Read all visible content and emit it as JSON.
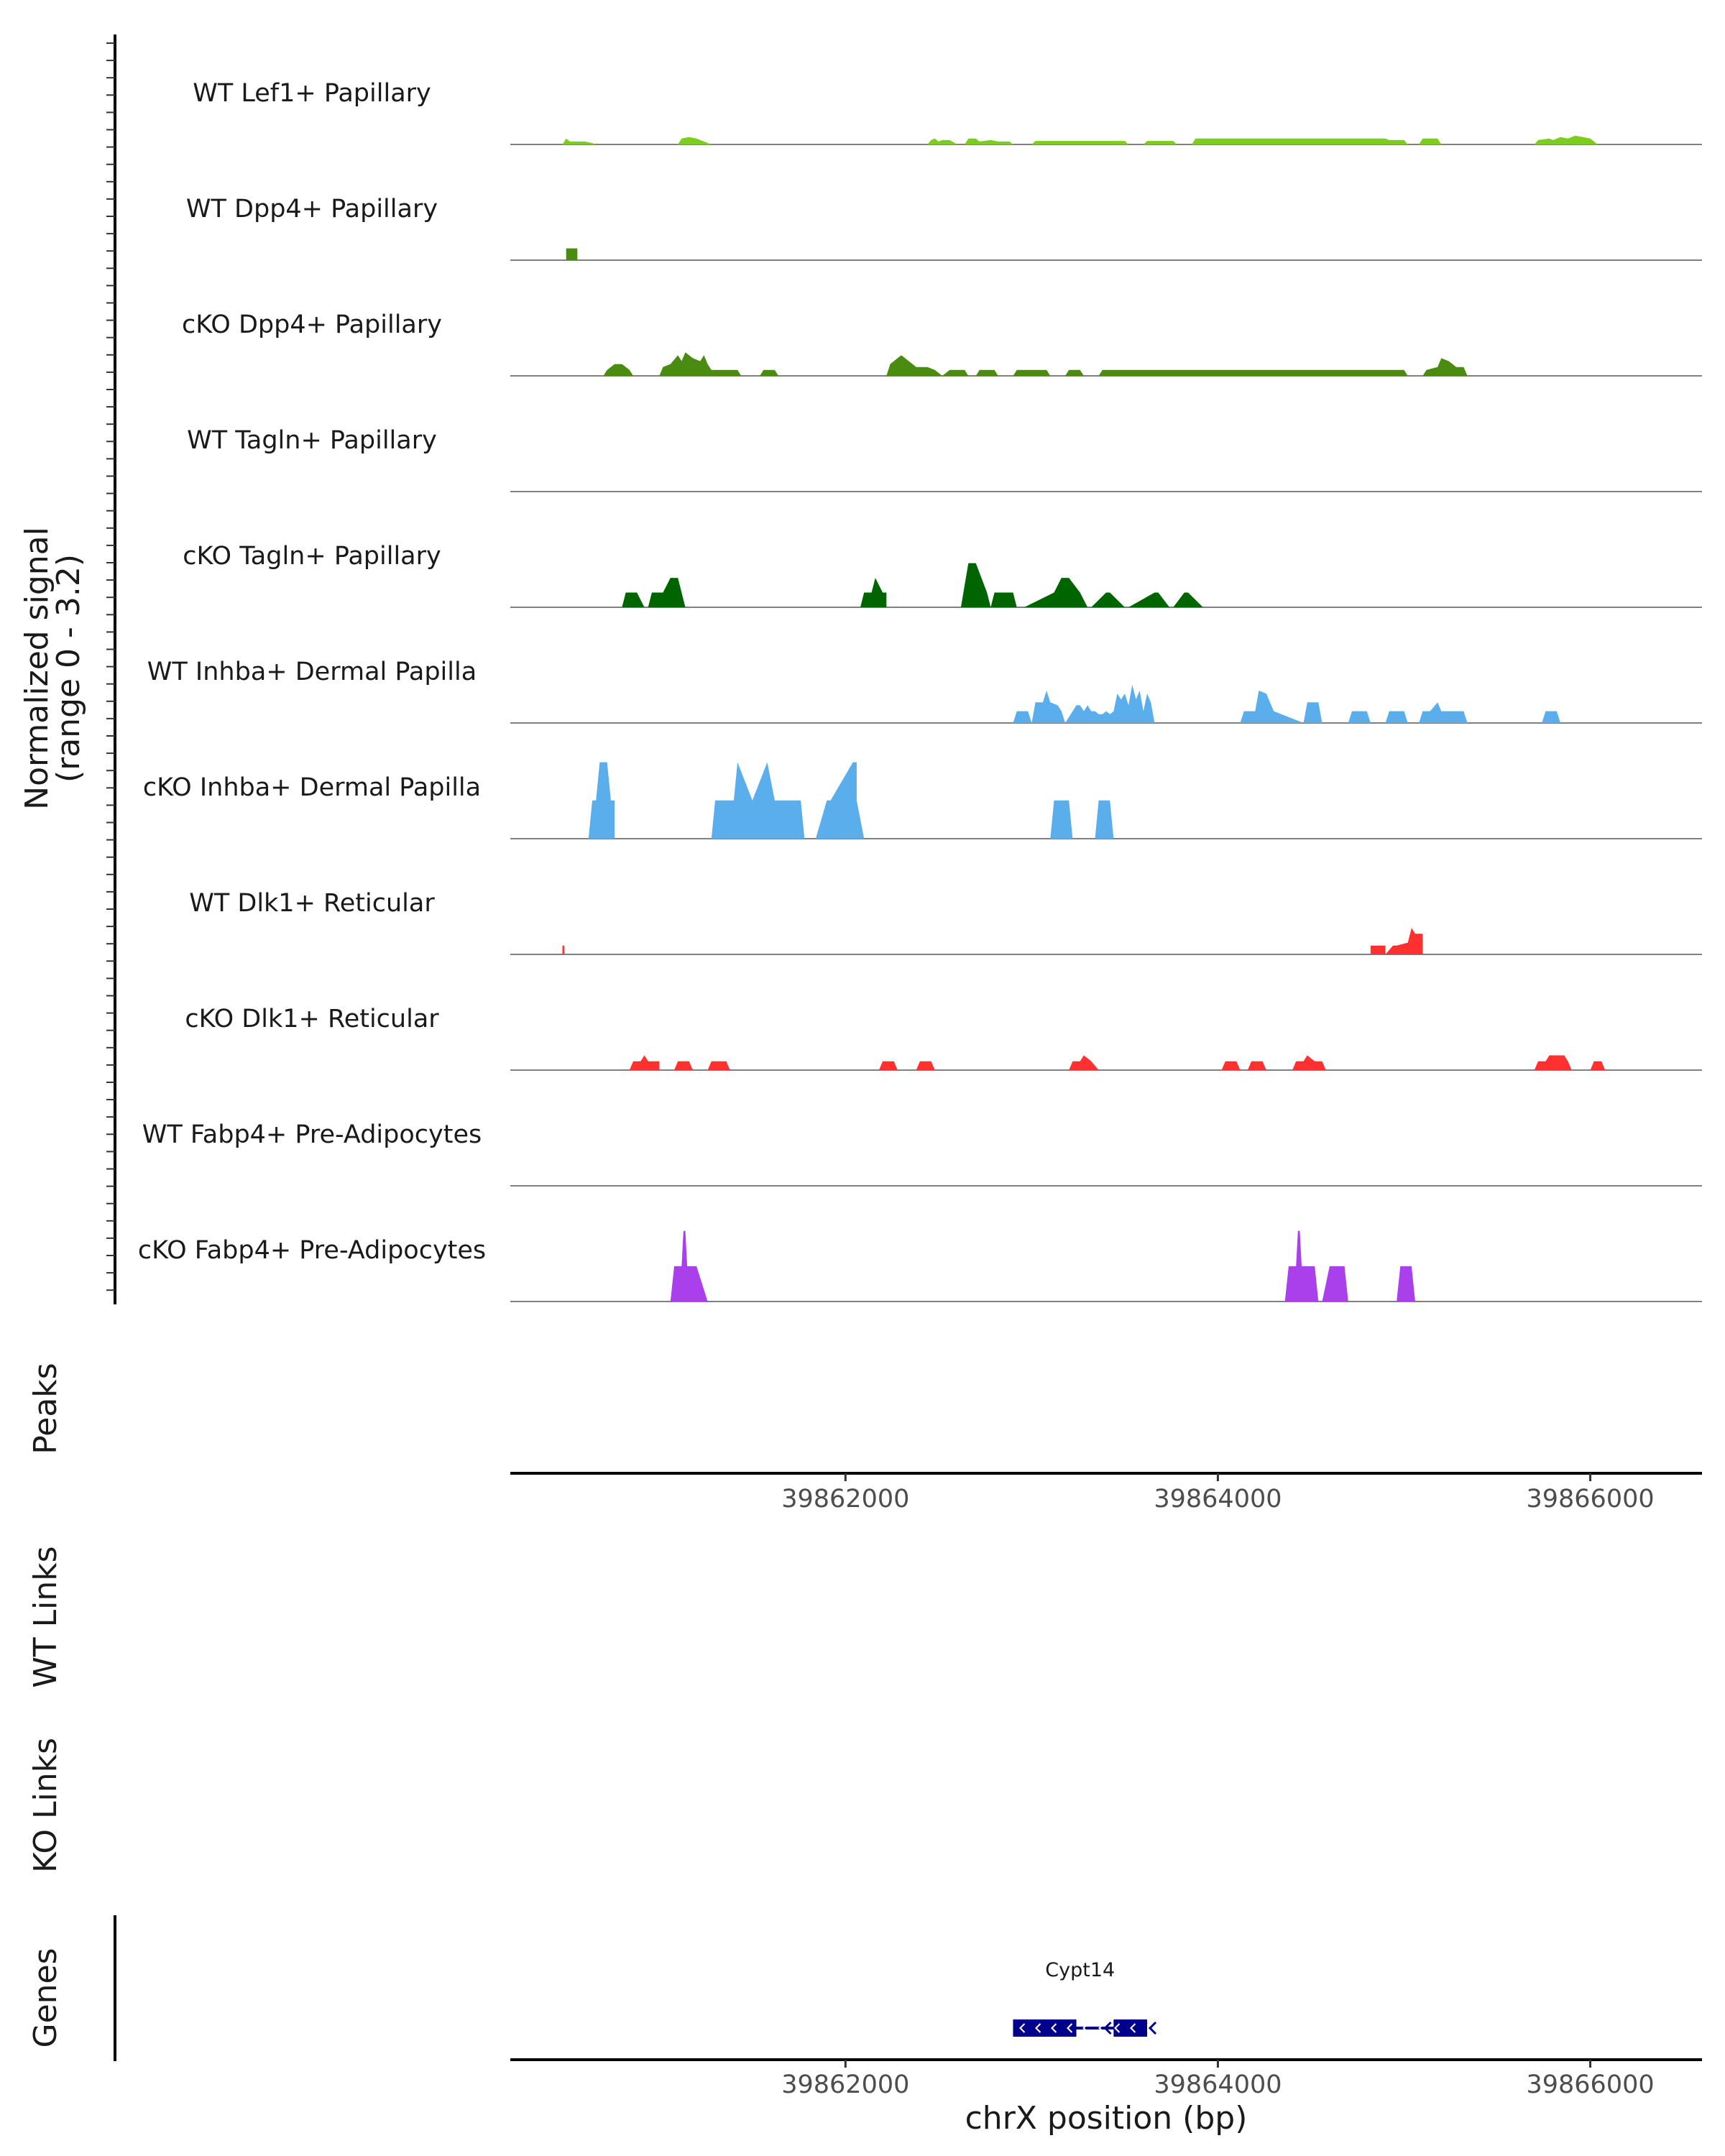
{
  "chart_data": {
    "type": "area",
    "description_axis": {
      "ylabel_line1": "Normalized signal",
      "ylabel_line2": "(range 0 - 3.2)",
      "ylim": [
        0,
        3.2
      ]
    },
    "xlabel": "chrX position (bp)",
    "xlim": [
      39860200,
      39866600
    ],
    "x_ticks": [
      39862000,
      39864000,
      39866000
    ],
    "x_tick_labels": [
      "39862000",
      "39864000",
      "39866000"
    ],
    "panel_labels": {
      "peaks": "Peaks",
      "wt_links": "WT Links",
      "ko_links": "KO Links",
      "genes": "Genes"
    },
    "series": [
      {
        "name": "WT Lef1+ Papillary",
        "color": "#7CCD1F",
        "x": [
          39860480,
          39860500,
          39860520,
          39860560,
          39860600,
          39860640,
          39860660,
          39861100,
          39861120,
          39861160,
          39861200,
          39861240,
          39861280,
          39862440,
          39862460,
          39862480,
          39862500,
          39862520,
          39862560,
          39862600,
          39862640,
          39862660,
          39862700,
          39862720,
          39862780,
          39862820,
          39862880,
          39862900,
          39863000,
          39863020,
          39863500,
          39863520,
          39863600,
          39863620,
          39863760,
          39863780,
          39863860,
          39863880,
          39864900,
          39864920,
          39865000,
          39865020,
          39865080,
          39865100,
          39865180,
          39865200,
          39865700,
          39865720,
          39865780,
          39865800,
          39865840,
          39865880,
          39865920,
          39865960,
          39866000,
          39866040
        ],
        "y": [
          0,
          0.2,
          0.1,
          0.1,
          0.1,
          0.05,
          0,
          0,
          0.2,
          0.25,
          0.2,
          0.1,
          0,
          0,
          0.15,
          0.2,
          0.1,
          0.15,
          0.15,
          0,
          0,
          0.2,
          0.2,
          0.1,
          0.15,
          0.1,
          0.1,
          0,
          0,
          0.12,
          0.12,
          0,
          0,
          0.12,
          0.12,
          0,
          0,
          0.2,
          0.2,
          0.15,
          0.15,
          0,
          0,
          0.2,
          0.2,
          0,
          0,
          0.15,
          0.2,
          0.15,
          0.25,
          0.2,
          0.3,
          0.25,
          0.2,
          0
        ]
      },
      {
        "name": "WT Dpp4+ Papillary",
        "color": "#4A8B11",
        "x": [
          39860500,
          39860500,
          39860560,
          39860560
        ],
        "y": [
          0,
          0.4,
          0.4,
          0
        ]
      },
      {
        "name": "cKO Dpp4+ Papillary",
        "color": "#4A8B11",
        "x": [
          39860700,
          39860720,
          39860760,
          39860800,
          39860840,
          39860860,
          39861000,
          39861020,
          39861060,
          39861100,
          39861120,
          39861140,
          39861180,
          39861220,
          39861240,
          39861260,
          39861280,
          39861420,
          39861440,
          39861540,
          39861560,
          39861620,
          39861640,
          39862220,
          39862240,
          39862260,
          39862300,
          39862320,
          39862340,
          39862380,
          39862440,
          39862480,
          39862520,
          39862560,
          39862640,
          39862660,
          39862700,
          39862720,
          39862800,
          39862820,
          39862900,
          39862920,
          39863080,
          39863100,
          39863180,
          39863200,
          39863260,
          39863280,
          39863360,
          39863380,
          39865000,
          39865020,
          39865100,
          39865120,
          39865180,
          39865200,
          39865240,
          39865280,
          39865320,
          39865340
        ],
        "y": [
          0,
          0.2,
          0.4,
          0.4,
          0.2,
          0,
          0,
          0.3,
          0.4,
          0.7,
          0.5,
          0.8,
          0.6,
          0.5,
          0.7,
          0.4,
          0.2,
          0.2,
          0,
          0,
          0.2,
          0.2,
          0,
          0,
          0.4,
          0.5,
          0.7,
          0.6,
          0.5,
          0.3,
          0.3,
          0.2,
          0,
          0.2,
          0.2,
          0,
          0,
          0.2,
          0.2,
          0,
          0,
          0.2,
          0.2,
          0,
          0,
          0.2,
          0.2,
          0,
          0,
          0.2,
          0.2,
          0,
          0,
          0.2,
          0.3,
          0.6,
          0.5,
          0.3,
          0.3,
          0
        ]
      },
      {
        "name": "WT Tagln+ Papillary",
        "color": "#006400",
        "x": [
          39860200,
          39866600
        ],
        "y": [
          0,
          0
        ]
      },
      {
        "name": "cKO Tagln+ Papillary",
        "color": "#006400",
        "x": [
          39860800,
          39860820,
          39860880,
          39860920,
          39860940,
          39860960,
          39861020,
          39861060,
          39861100,
          39861140,
          39862080,
          39862100,
          39862140,
          39862160,
          39862200,
          39862220,
          39862220,
          39862620,
          39862660,
          39862700,
          39862760,
          39862780,
          39862800,
          39862900,
          39862920,
          39862960,
          39863120,
          39863160,
          39863200,
          39863260,
          39863300,
          39863320,
          39863400,
          39863420,
          39863500,
          39863520,
          39863660,
          39863680,
          39863740,
          39863760,
          39863820,
          39863840,
          39863920,
          39863940
        ],
        "y": [
          0,
          0.5,
          0.5,
          0,
          0,
          0.5,
          0.5,
          1.0,
          1.0,
          0,
          0,
          0.5,
          0.5,
          1.0,
          0.5,
          0.5,
          0,
          0,
          1.5,
          1.5,
          0.5,
          0,
          0.5,
          0.5,
          0,
          0,
          0.5,
          1.0,
          1.0,
          0.5,
          0,
          0,
          0.5,
          0.5,
          0,
          0,
          0.5,
          0.5,
          0,
          0,
          0.5,
          0.5,
          0,
          0
        ]
      },
      {
        "name": "WT Inhba+ Dermal Papilla",
        "color": "#5BAEEC",
        "x": [
          39862900,
          39862920,
          39862980,
          39863000,
          39863020,
          39863060,
          39863080,
          39863100,
          39863140,
          39863160,
          39863180,
          39863220,
          39863240,
          39863260,
          39863280,
          39863300,
          39863320,
          39863340,
          39863360,
          39863380,
          39863400,
          39863420,
          39863440,
          39863460,
          39863480,
          39863500,
          39863520,
          39863540,
          39863560,
          39863580,
          39863600,
          39863620,
          39863640,
          39863660,
          39864120,
          39864140,
          39864200,
          39864220,
          39864260,
          39864300,
          39864460,
          39864480,
          39864540,
          39864560,
          39864700,
          39864720,
          39864800,
          39864820,
          39864900,
          39864920,
          39865000,
          39865020,
          39865080,
          39865100,
          39865140,
          39865180,
          39865200,
          39865320,
          39865340,
          39865740,
          39865760,
          39865820,
          39865840
        ],
        "y": [
          0,
          0.4,
          0.4,
          0,
          0.7,
          0.7,
          1.1,
          0.7,
          0.6,
          0.4,
          0,
          0.4,
          0.6,
          0.6,
          0.4,
          0.6,
          0.4,
          0.4,
          0.3,
          0.3,
          0.4,
          0.3,
          0.4,
          1.0,
          0.8,
          1.0,
          0.6,
          1.3,
          0.8,
          1.1,
          0.4,
          1.0,
          0.7,
          0,
          0,
          0.4,
          0.4,
          1.1,
          1.0,
          0.4,
          0,
          0.7,
          0.7,
          0,
          0,
          0.4,
          0.4,
          0,
          0,
          0.4,
          0.4,
          0,
          0,
          0.4,
          0.4,
          0.7,
          0.4,
          0.4,
          0,
          0,
          0.4,
          0.4,
          0
        ]
      },
      {
        "name": "cKO Inhba+ Dermal Papilla",
        "color": "#5BAEEC",
        "x": [
          39860620,
          39860640,
          39860660,
          39860680,
          39860720,
          39860740,
          39860760,
          39860760,
          39861280,
          39861300,
          39861400,
          39861420,
          39861500,
          39861580,
          39861620,
          39861660,
          39861760,
          39861780,
          39861840,
          39861900,
          39861920,
          39862040,
          39862060,
          39862060,
          39862100,
          39863100,
          39863120,
          39863200,
          39863220,
          39863340,
          39863360,
          39863420,
          39863440
        ],
        "y": [
          0,
          1.3,
          1.3,
          2.6,
          2.6,
          1.3,
          1.3,
          0,
          0,
          1.3,
          1.3,
          2.6,
          1.3,
          2.6,
          1.3,
          1.3,
          1.3,
          0,
          0,
          1.3,
          1.3,
          2.6,
          2.6,
          1.3,
          0,
          0,
          1.3,
          1.3,
          0,
          0,
          1.3,
          1.3,
          0
        ]
      },
      {
        "name": "WT Dlk1+ Reticular",
        "color": "#FF3030",
        "x": [
          39860480,
          39860480,
          39860490,
          39860490,
          39864820,
          39864820,
          39864900,
          39864900,
          39864940,
          39864960,
          39865020,
          39865040,
          39865060,
          39865080,
          39865100,
          39865100
        ],
        "y": [
          0,
          0.3,
          0.3,
          0,
          0,
          0.3,
          0.3,
          0,
          0.3,
          0.3,
          0.4,
          0.9,
          0.7,
          0.7,
          0.7,
          0
        ]
      },
      {
        "name": "cKO Dlk1+ Reticular",
        "color": "#FF3030",
        "x": [
          39860840,
          39860860,
          39860900,
          39860920,
          39860940,
          39860960,
          39861000,
          39861000,
          39861080,
          39861100,
          39861160,
          39861180,
          39861260,
          39861280,
          39861360,
          39861380,
          39862180,
          39862200,
          39862260,
          39862280,
          39862380,
          39862400,
          39862460,
          39862480,
          39863200,
          39863220,
          39863260,
          39863280,
          39863320,
          39863360,
          39864020,
          39864040,
          39864100,
          39864120,
          39864160,
          39864180,
          39864240,
          39864260,
          39864400,
          39864420,
          39864460,
          39864480,
          39864520,
          39864540,
          39864560,
          39864580,
          39865700,
          39865720,
          39865760,
          39865780,
          39865860,
          39865880,
          39865900,
          39866000,
          39866020,
          39866060,
          39866080
        ],
        "y": [
          0,
          0.3,
          0.3,
          0.5,
          0.3,
          0.3,
          0.3,
          0,
          0,
          0.3,
          0.3,
          0,
          0,
          0.3,
          0.3,
          0,
          0,
          0.3,
          0.3,
          0,
          0,
          0.3,
          0.3,
          0,
          0,
          0.3,
          0.3,
          0.5,
          0.3,
          0,
          0,
          0.3,
          0.3,
          0,
          0,
          0.3,
          0.3,
          0,
          0,
          0.3,
          0.3,
          0.5,
          0.3,
          0.3,
          0.3,
          0,
          0,
          0.3,
          0.3,
          0.5,
          0.5,
          0.3,
          0,
          0,
          0.3,
          0.3,
          0
        ]
      },
      {
        "name": "WT Fabp4+ Pre-Adipocytes",
        "color": "#AA40EC",
        "x": [
          39860200,
          39866600
        ],
        "y": [
          0,
          0
        ]
      },
      {
        "name": "cKO Fabp4+ Pre-Adipocytes",
        "color": "#AA40EC",
        "x": [
          39861060,
          39861080,
          39861120,
          39861130,
          39861140,
          39861150,
          39861200,
          39861260,
          39864360,
          39864380,
          39864420,
          39864430,
          39864440,
          39864450,
          39864520,
          39864540,
          39864560,
          39864600,
          39864680,
          39864700,
          39864960,
          39864980,
          39865040,
          39865060
        ],
        "y": [
          0,
          1.2,
          1.2,
          2.4,
          2.4,
          1.2,
          1.2,
          0,
          0,
          1.2,
          1.2,
          2.4,
          2.4,
          1.2,
          1.2,
          0,
          0,
          1.2,
          1.2,
          0,
          0,
          1.2,
          1.2,
          0
        ]
      }
    ],
    "genes": [
      {
        "name": "Cypt14",
        "strand": "-",
        "start": 39862900,
        "end": 39863620,
        "exons": [
          [
            39862900,
            39863240
          ],
          [
            39863440,
            39863620
          ]
        ],
        "color": "#00008B"
      }
    ]
  }
}
